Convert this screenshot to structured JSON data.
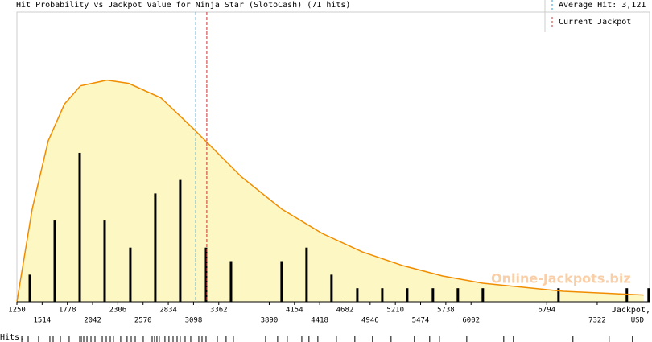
{
  "chart_data": {
    "type": "bar",
    "title": "Hit Probability vs Jackpot Value for Ninja Star (SlotoCash) (71 hits)",
    "x_label": [
      "Jackpot,",
      "USD"
    ],
    "rug_label": "Hits:",
    "watermark": "Online-Jackpots.biz",
    "average_hit": {
      "value": 3121,
      "label": "Average Hit: 3,121",
      "color": "#3399cc"
    },
    "current_jackpot": {
      "value": 3237,
      "label": "Current Jackpot",
      "color": "#cc3333"
    },
    "xlim": [
      1250,
      7870
    ],
    "ylim": [
      0,
      21.4
    ],
    "xticks": [
      1250,
      1514,
      1778,
      2042,
      2306,
      2570,
      2834,
      3098,
      3362,
      3890,
      4154,
      4418,
      4682,
      4946,
      5210,
      5474,
      5738,
      6002,
      6794,
      7322
    ],
    "x": [
      1385,
      1646,
      1907,
      2168,
      2437,
      2698,
      2959,
      3229,
      3490,
      4020,
      4281,
      4542,
      4812,
      5073,
      5334,
      5603,
      5864,
      6125,
      6917,
      7632,
      7860
    ],
    "values": [
      2,
      6,
      11,
      6,
      4,
      8,
      9,
      4,
      3,
      3,
      4,
      2,
      1,
      1,
      1,
      1,
      1,
      1,
      1,
      1,
      1
    ],
    "color": "#000000",
    "curve": {
      "color": "#f08c00",
      "fill": "#fdf7c4",
      "x": [
        1250,
        1410,
        1578,
        1747,
        1915,
        2193,
        2420,
        2757,
        3094,
        3599,
        4020,
        4441,
        4862,
        5283,
        5704,
        6125,
        6967,
        7809
      ],
      "values": [
        0,
        6.85,
        11.9,
        14.6,
        15.95,
        16.37,
        16.13,
        15.06,
        12.8,
        9.23,
        6.85,
        5.06,
        3.69,
        2.68,
        1.9,
        1.37,
        0.77,
        0.5
      ]
    },
    "hits": [
      1301,
      1368,
      1477,
      1595,
      1629,
      1705,
      1797,
      1907,
      1924,
      1949,
      1983,
      2025,
      2067,
      2143,
      2185,
      2227,
      2260,
      2336,
      2403,
      2446,
      2488,
      2572,
      2665,
      2690,
      2715,
      2740,
      2799,
      2841,
      2884,
      2926,
      2959,
      3010,
      3069,
      3153,
      3187,
      3229,
      3347,
      3439,
      3515,
      3852,
      3978,
      4079,
      4231,
      4306,
      4399,
      4593,
      4786,
      4971,
      5165,
      5409,
      5569,
      5671,
      5957,
      6344,
      6445,
      7068,
      7447,
      7691
    ]
  }
}
